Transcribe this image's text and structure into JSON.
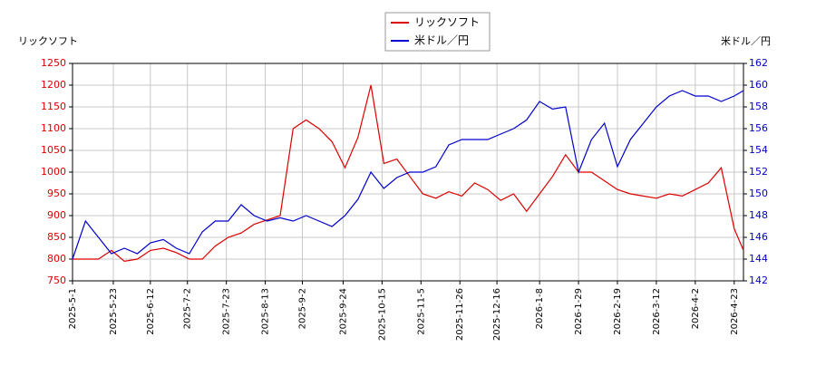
{
  "chart_data": {
    "type": "line",
    "y_label": "リックソフト",
    "y2_label": "米ドル／円",
    "legend": "upper center",
    "grid": true,
    "x": [
      "2025-05-01",
      "2025-05-08",
      "2025-05-15",
      "2025-05-22",
      "2025-05-29",
      "2025-06-05",
      "2025-06-12",
      "2025-06-19",
      "2025-06-26",
      "2025-07-03",
      "2025-07-10",
      "2025-07-17",
      "2025-07-24",
      "2025-07-31",
      "2025-08-07",
      "2025-08-14",
      "2025-08-21",
      "2025-08-28",
      "2025-09-04",
      "2025-09-11",
      "2025-09-18",
      "2025-09-25",
      "2025-10-02",
      "2025-10-09",
      "2025-10-16",
      "2025-10-23",
      "2025-10-30",
      "2025-11-06",
      "2025-11-13",
      "2025-11-20",
      "2025-11-27",
      "2025-12-04",
      "2025-12-11",
      "2025-12-18",
      "2025-12-25",
      "2026-01-01",
      "2026-01-08",
      "2026-01-15",
      "2026-01-22",
      "2026-01-29",
      "2026-02-05",
      "2026-02-12",
      "2026-02-19",
      "2026-02-26",
      "2026-03-05",
      "2026-03-12",
      "2026-03-19",
      "2026-03-26",
      "2026-04-02",
      "2026-04-09",
      "2026-04-16",
      "2026-04-23",
      "2026-04-28"
    ],
    "series": [
      {
        "name": "リックソフト",
        "color": "#dd0000",
        "axis": "y",
        "values": [
          800,
          800,
          800,
          820,
          795,
          800,
          820,
          825,
          815,
          800,
          800,
          830,
          850,
          860,
          880,
          890,
          900,
          1100,
          1120,
          1100,
          1070,
          1010,
          1080,
          1200,
          1020,
          1030,
          990,
          950,
          940,
          955,
          945,
          975,
          960,
          935,
          950,
          910,
          950,
          990,
          1040,
          1000,
          1000,
          980,
          960,
          950,
          945,
          940,
          950,
          945,
          960,
          975,
          1010,
          870,
          820
        ]
      },
      {
        "name": "米ドル／円",
        "color": "#0000cc",
        "axis": "y2",
        "values": [
          144,
          147.5,
          146,
          144.5,
          145,
          144.5,
          145.5,
          145.8,
          145,
          144.5,
          146.5,
          147.5,
          147.5,
          149,
          148,
          147.5,
          147.8,
          147.5,
          148,
          147.5,
          147,
          148,
          149.5,
          152,
          150.5,
          151.5,
          152,
          152,
          152.5,
          154.5,
          155,
          155,
          155,
          155.5,
          156,
          156.8,
          158.5,
          157.8,
          158,
          152,
          155,
          156.5,
          152.5,
          155,
          156.5,
          158,
          159,
          159.5,
          159,
          159,
          158.5,
          159,
          159.5
        ]
      }
    ],
    "xlim": [
      "2025-05-01",
      "2026-04-28"
    ],
    "xticks": [
      {
        "value": "2025-05-01",
        "label": "2025-5-1"
      },
      {
        "value": "2025-05-23",
        "label": "2025-5-23"
      },
      {
        "value": "2025-06-12",
        "label": "2025-6-12"
      },
      {
        "value": "2025-07-02",
        "label": "2025-7-2"
      },
      {
        "value": "2025-07-23",
        "label": "2025-7-23"
      },
      {
        "value": "2025-08-13",
        "label": "2025-8-13"
      },
      {
        "value": "2025-09-02",
        "label": "2025-9-2"
      },
      {
        "value": "2025-09-24",
        "label": "2025-9-24"
      },
      {
        "value": "2025-10-15",
        "label": "2025-10-15"
      },
      {
        "value": "2025-11-05",
        "label": "2025-11-5"
      },
      {
        "value": "2025-11-26",
        "label": "2025-11-26"
      },
      {
        "value": "2025-12-16",
        "label": "2025-12-16"
      },
      {
        "value": "2026-01-08",
        "label": "2026-1-8"
      },
      {
        "value": "2026-01-29",
        "label": "2026-1-29"
      },
      {
        "value": "2026-02-19",
        "label": "2026-2-19"
      },
      {
        "value": "2026-03-12",
        "label": "2026-3-12"
      },
      {
        "value": "2026-04-02",
        "label": "2026-4-2"
      },
      {
        "value": "2026-04-23",
        "label": "2026-4-23"
      }
    ],
    "ylim": [
      750,
      1250
    ],
    "yticks": [
      750,
      800,
      850,
      900,
      950,
      1000,
      1050,
      1100,
      1150,
      1200,
      1250
    ],
    "y2lim": [
      142,
      162
    ],
    "y2ticks": [
      142,
      144,
      146,
      148,
      150,
      152,
      154,
      156,
      158,
      160,
      162
    ]
  }
}
